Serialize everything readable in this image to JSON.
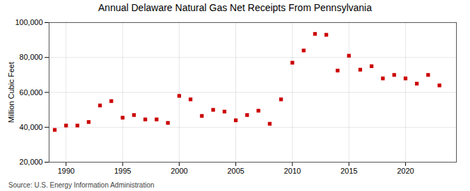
{
  "chart_data": {
    "type": "scatter",
    "title": "Annual Delaware Natural Gas Net Receipts From Pennsylvania",
    "ylabel": "Million Cubic Feet",
    "annotations": [
      "Source: U.S. Energy Information Administration"
    ],
    "x": [
      1989,
      1990,
      1991,
      1992,
      1993,
      1994,
      1995,
      1996,
      1997,
      1998,
      1999,
      2000,
      2001,
      2002,
      2003,
      2004,
      2005,
      2006,
      2007,
      2008,
      2009,
      2010,
      2011,
      2012,
      2013,
      2014,
      2015,
      2016,
      2017,
      2018,
      2019,
      2020,
      2021,
      2022,
      2023
    ],
    "values": [
      38500,
      41000,
      41000,
      43000,
      52500,
      55000,
      45500,
      47000,
      44500,
      44500,
      42500,
      58000,
      56000,
      46500,
      50000,
      49000,
      44000,
      47000,
      49500,
      42000,
      56000,
      77000,
      84000,
      93500,
      93000,
      72500,
      81000,
      73000,
      75000,
      68000,
      70000,
      68000,
      65000,
      70000,
      64000
    ],
    "color": "#cc0000",
    "marker": "square",
    "xlim": [
      1988.5,
      2024.5
    ],
    "ylim": [
      20000,
      100000
    ],
    "xticks": [
      1990,
      1995,
      2000,
      2005,
      2010,
      2015,
      2020
    ],
    "yticks": [
      {
        "value": 20000,
        "label": "20,000"
      },
      {
        "value": 40000,
        "label": "40,000"
      },
      {
        "value": 60000,
        "label": "60,000"
      },
      {
        "value": 80000,
        "label": "80,000"
      },
      {
        "value": 100000,
        "label": "100,000"
      }
    ],
    "grid": true
  }
}
